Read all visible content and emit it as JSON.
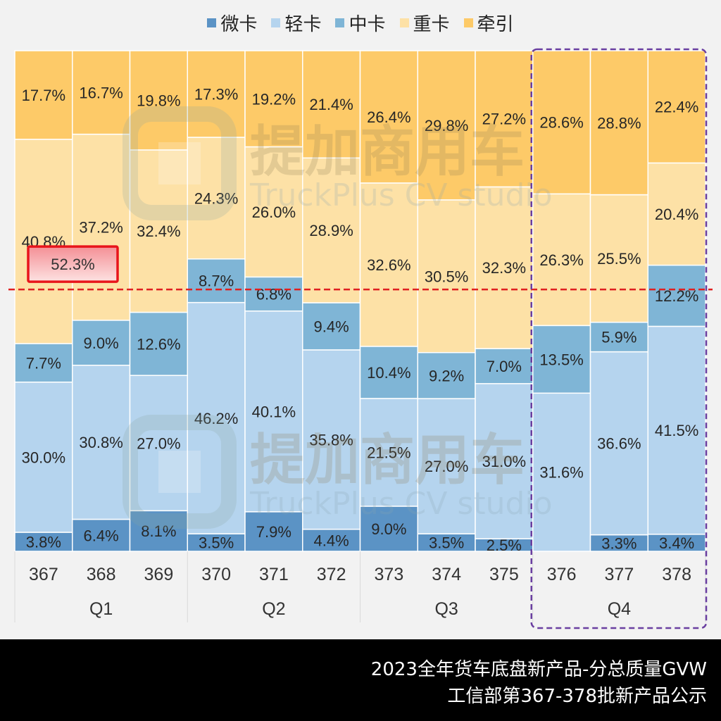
{
  "chart_data": {
    "type": "bar",
    "stacked": true,
    "normalized": true,
    "title": "2023全年货车底盘新产品-分总质量GVW",
    "subtitle": "工信部第367-378批新产品公示",
    "xlabel": "",
    "ylabel": "",
    "ylim": [
      0,
      100
    ],
    "legend_position": "top",
    "categories": [
      "367",
      "368",
      "369",
      "370",
      "371",
      "372",
      "373",
      "374",
      "375",
      "376",
      "377",
      "378"
    ],
    "groups": [
      {
        "label": "Q1",
        "categories": [
          "367",
          "368",
          "369"
        ]
      },
      {
        "label": "Q2",
        "categories": [
          "370",
          "371",
          "372"
        ]
      },
      {
        "label": "Q3",
        "categories": [
          "373",
          "374",
          "375"
        ]
      },
      {
        "label": "Q4",
        "categories": [
          "376",
          "377",
          "378"
        ]
      }
    ],
    "series": [
      {
        "name": "微卡",
        "color": "#5b93c5",
        "values": [
          3.8,
          6.4,
          8.1,
          3.5,
          7.9,
          4.4,
          9.0,
          3.5,
          2.5,
          0.0,
          3.3,
          3.4
        ],
        "labels": [
          "3.8%",
          "6.4%",
          "8.1%",
          "3.5%",
          "7.9%",
          "4.4%",
          "9.0%",
          "3.5%",
          "2.5%",
          "",
          "3.3%",
          "3.4%"
        ]
      },
      {
        "name": "轻卡",
        "color": "#b5d4ee",
        "values": [
          30.0,
          30.8,
          27.0,
          46.2,
          40.1,
          35.8,
          21.5,
          27.0,
          31.0,
          31.6,
          36.6,
          41.5
        ],
        "labels": [
          "30.0%",
          "30.8%",
          "27.0%",
          "46.2%",
          "40.1%",
          "35.8%",
          "21.5%",
          "27.0%",
          "31.0%",
          "31.6%",
          "36.6%",
          "41.5%"
        ]
      },
      {
        "name": "中卡",
        "color": "#7fb5d6",
        "values": [
          7.7,
          9.0,
          12.6,
          8.7,
          6.8,
          9.4,
          10.4,
          9.2,
          7.0,
          13.5,
          5.9,
          12.2
        ],
        "labels": [
          "7.7%",
          "9.0%",
          "12.6%",
          "8.7%",
          "6.8%",
          "9.4%",
          "10.4%",
          "9.2%",
          "7.0%",
          "13.5%",
          "5.9%",
          "12.2%"
        ]
      },
      {
        "name": "重卡",
        "color": "#fde1a6",
        "values": [
          40.8,
          37.2,
          32.4,
          24.3,
          26.0,
          28.9,
          32.6,
          30.5,
          32.3,
          26.3,
          25.5,
          20.4
        ],
        "labels": [
          "40.8%",
          "37.2%",
          "32.4%",
          "24.3%",
          "26.0%",
          "28.9%",
          "32.6%",
          "30.5%",
          "32.3%",
          "26.3%",
          "25.5%",
          "20.4%"
        ]
      },
      {
        "name": "牵引",
        "color": "#fdca68",
        "values": [
          17.7,
          16.7,
          19.8,
          17.3,
          19.2,
          21.4,
          26.4,
          29.8,
          27.2,
          28.6,
          28.8,
          22.4
        ],
        "labels": [
          "17.7%",
          "16.7%",
          "19.8%",
          "17.3%",
          "19.2%",
          "21.4%",
          "26.4%",
          "29.8%",
          "27.2%",
          "28.6%",
          "28.8%",
          "22.4%"
        ]
      }
    ],
    "annotations": {
      "reference_line_percent": 52.3,
      "reference_label": "52.3%",
      "reference_line_color": "#e02020",
      "highlight_group": "Q4",
      "highlight_color": "#6a3fa0"
    },
    "watermark": {
      "cn": "提加商用车",
      "en": "TruckPlus CV studio"
    }
  }
}
